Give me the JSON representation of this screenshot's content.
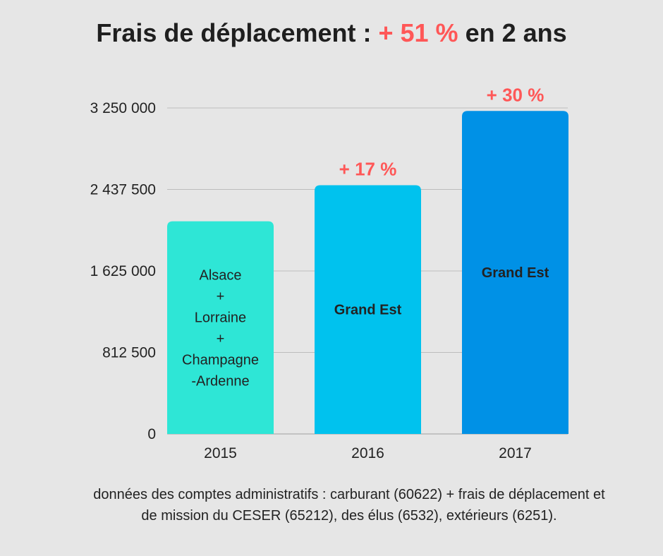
{
  "title": {
    "part1": "Frais de déplacement : ",
    "highlight": "+ 51 %",
    "part2": " en 2 ans"
  },
  "colors": {
    "highlight": "#ff5757",
    "grid": "#bdbdbd",
    "background": "#e6e6e6"
  },
  "chart_data": {
    "type": "bar",
    "categories": [
      "2015",
      "2016",
      "2017"
    ],
    "values": [
      2120000,
      2480000,
      3220000
    ],
    "bar_colors": [
      "#2ee6d6",
      "#00c2ee",
      "#0091e6"
    ],
    "bar_labels": [
      [
        "Alsace",
        "+",
        "Lorraine",
        "+",
        "Champagne",
        "-Ardenne"
      ],
      [
        "Grand Est"
      ],
      [
        "Grand Est"
      ]
    ],
    "annotations": [
      "",
      "+ 17 %",
      "+ 30 %"
    ],
    "yticks": [
      0,
      812500,
      1625000,
      2437500,
      3250000
    ],
    "ytick_labels": [
      "0",
      "812 500",
      "1 625 000",
      "2 437 500",
      "3 250 000"
    ],
    "ylim": [
      0,
      3250000
    ],
    "grid": true,
    "xlabel": "",
    "ylabel": ""
  },
  "note": {
    "line1": "données des comptes administratifs : carburant (60622) + frais de déplacement et",
    "line2": "de mission du CESER (65212), des élus (6532), extérieurs (6251)."
  }
}
